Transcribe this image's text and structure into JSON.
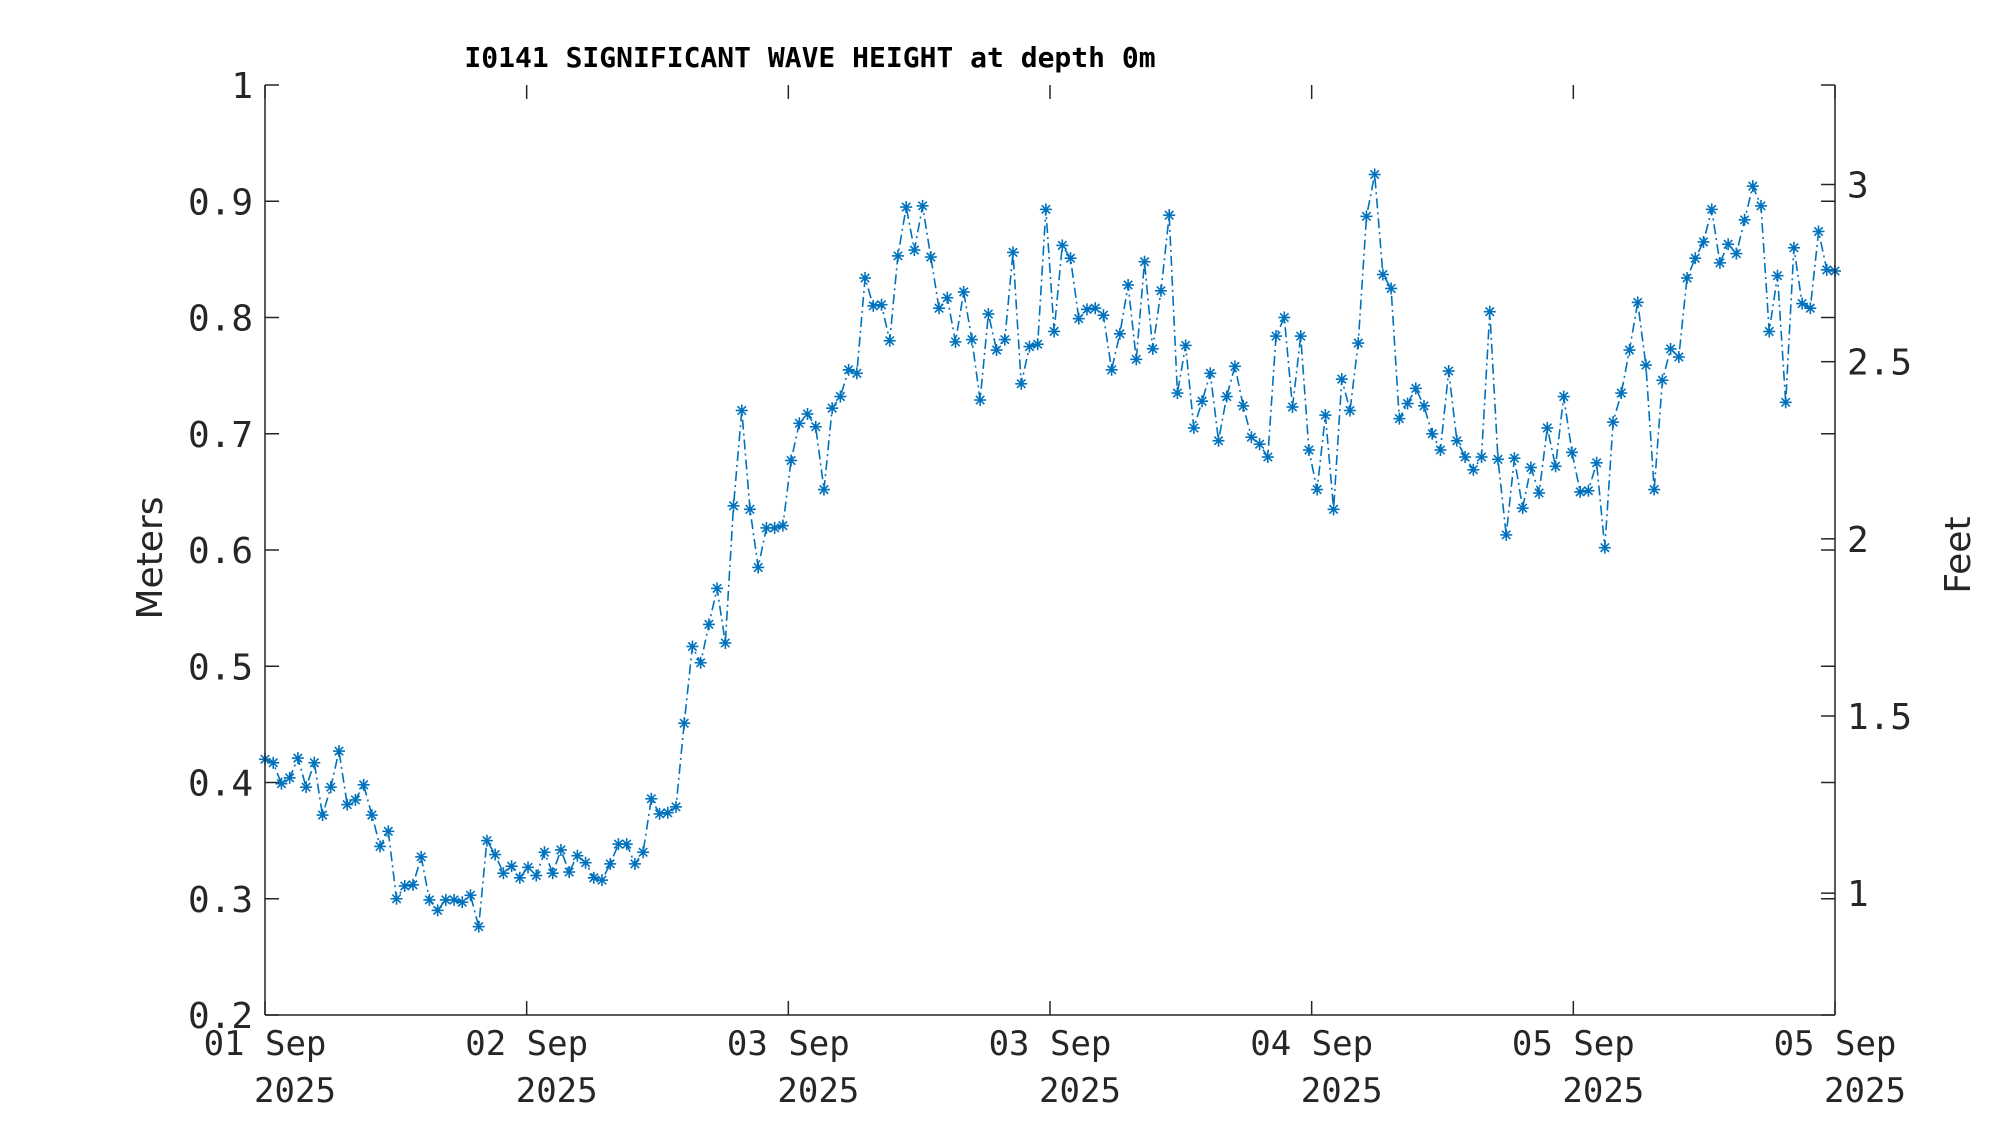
{
  "chart_data": {
    "type": "line",
    "title": "I0141 SIGNIFICANT WAVE HEIGHT at depth 0m",
    "ylabel": "Meters",
    "y2label": "Feet",
    "ylim": [
      0.2,
      1.0
    ],
    "y_ticks": [
      "0.2",
      "0.3",
      "0.4",
      "0.5",
      "0.6",
      "0.7",
      "0.8",
      "0.9",
      "1"
    ],
    "y2_ticks": [
      "1",
      "1.5",
      "2",
      "2.5",
      "3"
    ],
    "x_tick_labels": [
      {
        "top": "01 Sep",
        "bottom": "2025"
      },
      {
        "top": "02 Sep",
        "bottom": "2025"
      },
      {
        "top": "03 Sep",
        "bottom": "2025"
      },
      {
        "top": "03 Sep",
        "bottom": "2025"
      },
      {
        "top": "04 Sep",
        "bottom": "2025"
      },
      {
        "top": "05 Sep",
        "bottom": "2025"
      },
      {
        "top": "05 Sep",
        "bottom": "2025"
      }
    ],
    "series": [
      {
        "color": "#0072BD",
        "line_style": "dash-dot",
        "marker": "asterisk",
        "values": [
          0.42,
          0.417,
          0.399,
          0.404,
          0.421,
          0.396,
          0.417,
          0.372,
          0.396,
          0.427,
          0.381,
          0.385,
          0.398,
          0.372,
          0.345,
          0.358,
          0.3,
          0.311,
          0.312,
          0.336,
          0.299,
          0.29,
          0.299,
          0.299,
          0.297,
          0.303,
          0.276,
          0.35,
          0.338,
          0.322,
          0.328,
          0.318,
          0.327,
          0.32,
          0.34,
          0.322,
          0.342,
          0.323,
          0.337,
          0.331,
          0.318,
          0.316,
          0.33,
          0.347,
          0.347,
          0.33,
          0.34,
          0.386,
          0.373,
          0.374,
          0.379,
          0.451,
          0.517,
          0.503,
          0.536,
          0.567,
          0.52,
          0.638,
          0.72,
          0.635,
          0.585,
          0.619,
          0.619,
          0.621,
          0.677,
          0.709,
          0.717,
          0.706,
          0.652,
          0.722,
          0.732,
          0.755,
          0.752,
          0.834,
          0.81,
          0.811,
          0.78,
          0.853,
          0.895,
          0.858,
          0.896,
          0.852,
          0.808,
          0.817,
          0.779,
          0.822,
          0.781,
          0.729,
          0.803,
          0.772,
          0.781,
          0.856,
          0.743,
          0.775,
          0.777,
          0.893,
          0.788,
          0.862,
          0.851,
          0.799,
          0.807,
          0.808,
          0.802,
          0.755,
          0.786,
          0.828,
          0.764,
          0.848,
          0.773,
          0.823,
          0.888,
          0.735,
          0.776,
          0.705,
          0.728,
          0.752,
          0.694,
          0.732,
          0.758,
          0.724,
          0.697,
          0.691,
          0.68,
          0.784,
          0.8,
          0.723,
          0.784,
          0.686,
          0.652,
          0.716,
          0.635,
          0.747,
          0.72,
          0.778,
          0.887,
          0.923,
          0.837,
          0.825,
          0.713,
          0.726,
          0.739,
          0.724,
          0.7,
          0.686,
          0.754,
          0.694,
          0.68,
          0.669,
          0.68,
          0.805,
          0.678,
          0.613,
          0.679,
          0.636,
          0.671,
          0.649,
          0.705,
          0.672,
          0.732,
          0.684,
          0.65,
          0.651,
          0.675,
          0.602,
          0.71,
          0.735,
          0.772,
          0.813,
          0.759,
          0.652,
          0.746,
          0.773,
          0.766,
          0.834,
          0.851,
          0.865,
          0.893,
          0.847,
          0.863,
          0.855,
          0.884,
          0.913,
          0.896,
          0.788,
          0.836,
          0.727,
          0.86,
          0.812,
          0.808,
          0.874,
          0.841,
          0.84
        ]
      }
    ],
    "grid": false,
    "legend": "none"
  }
}
